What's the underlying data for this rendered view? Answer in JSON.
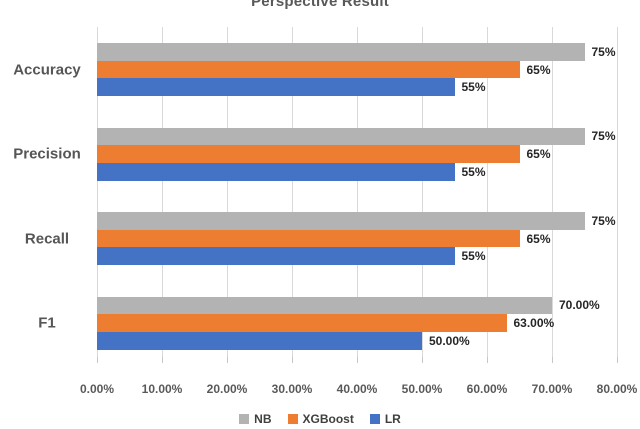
{
  "title": "Perspective Result",
  "colors": {
    "background": "#FFFFFF",
    "grid": "#D9D9D9",
    "tick": "#C6C6C6",
    "title_text": "#595959",
    "category_text": "#565656",
    "axis_text": "#595959",
    "data_label_text": "#262626",
    "legend_text": "#404040"
  },
  "chart_data": {
    "type": "bar",
    "orientation": "horizontal",
    "title": "Perspective Result",
    "categories": [
      "Accuracy",
      "Precision",
      "Recall",
      "F1"
    ],
    "series": [
      {
        "name": "NB",
        "color": "#B3B3B3",
        "values": [
          75,
          75,
          75,
          70
        ],
        "data_labels": [
          "75%",
          "75%",
          "75%",
          "70.00%"
        ]
      },
      {
        "name": "XGBoost",
        "color": "#ED7D31",
        "values": [
          65,
          65,
          65,
          63
        ],
        "data_labels": [
          "65%",
          "65%",
          "65%",
          "63.00%"
        ]
      },
      {
        "name": "LR",
        "color": "#4472C4",
        "values": [
          55,
          55,
          55,
          50
        ],
        "data_labels": [
          "55%",
          "55%",
          "55%",
          "50.00%"
        ]
      }
    ],
    "x_axis": {
      "min": 0,
      "max": 80,
      "step": 10,
      "tick_labels": [
        "0.00%",
        "10.00%",
        "20.00%",
        "30.00%",
        "40.00%",
        "50.00%",
        "60.00%",
        "70.00%",
        "80.00%"
      ],
      "grid": true
    },
    "legend": {
      "position": "bottom",
      "entries": [
        {
          "label": "NB",
          "color": "#B3B3B3"
        },
        {
          "label": "XGBoost",
          "color": "#ED7D31"
        },
        {
          "label": "LR",
          "color": "#4472C4"
        }
      ]
    }
  }
}
